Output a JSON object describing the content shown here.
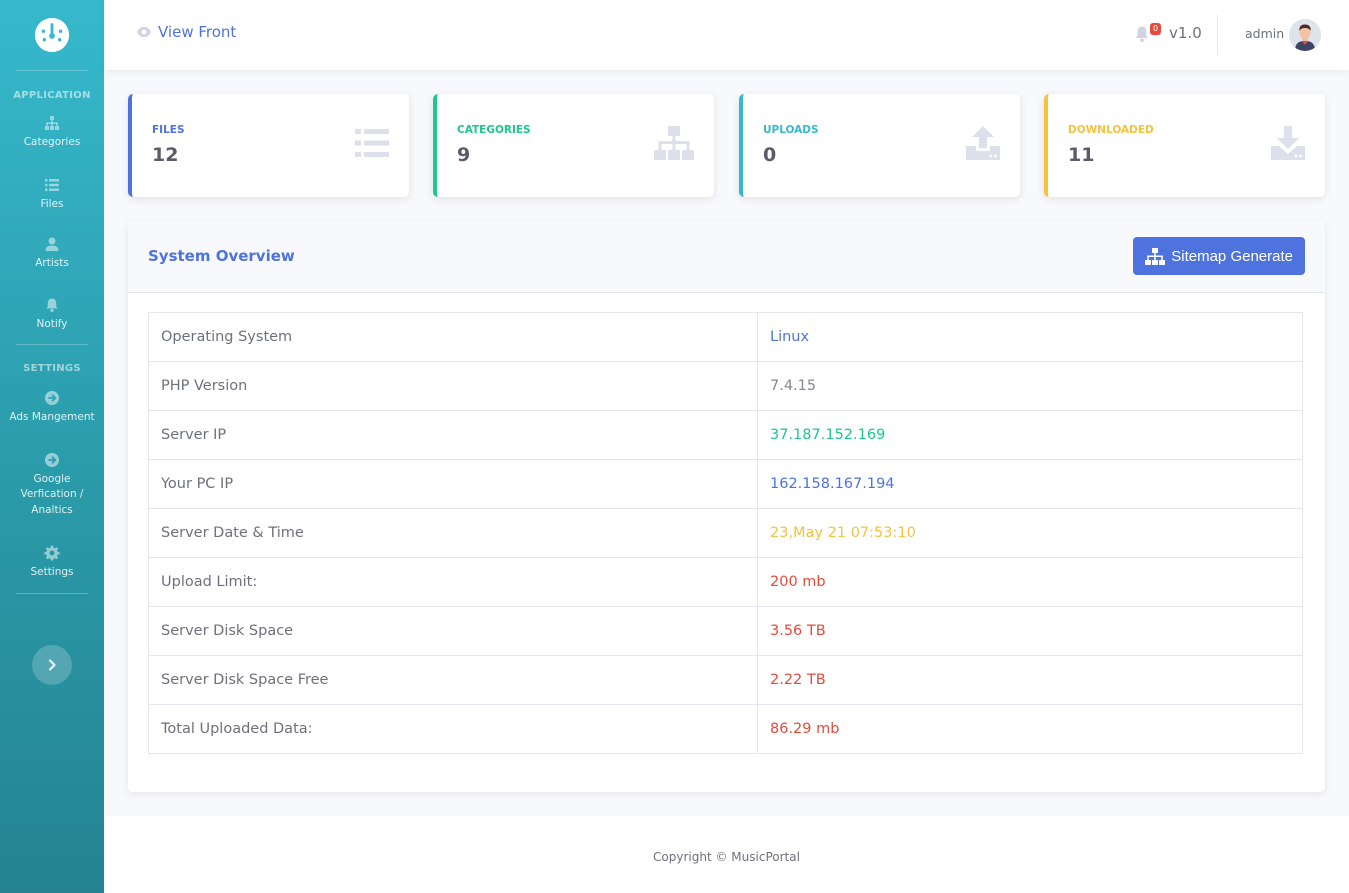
{
  "sidebar": {
    "heading_application": "APPLICATION",
    "heading_settings": "SETTINGS",
    "items": [
      {
        "label": "Categories"
      },
      {
        "label": "Files"
      },
      {
        "label": "Artists"
      },
      {
        "label": "Notify"
      },
      {
        "label": "Ads Mangement"
      },
      {
        "label": "Google Verfication / Analtics"
      },
      {
        "label": "Settings"
      }
    ]
  },
  "topbar": {
    "view_front": "View Front",
    "notification_count": "0",
    "version": "v1.0",
    "username": "admin"
  },
  "cards": [
    {
      "label": "FILES",
      "value": "12",
      "color": "#4e73df",
      "icon": "list-icon"
    },
    {
      "label": "CATEGORIES",
      "value": "9",
      "color": "#1cc88a",
      "icon": "sitemap-icon"
    },
    {
      "label": "UPLOADS",
      "value": "0",
      "color": "#36b9cc",
      "icon": "upload-icon"
    },
    {
      "label": "DOWNLOADED",
      "value": "11",
      "color": "#f6c23e",
      "icon": "download-icon"
    }
  ],
  "overview": {
    "title": "System Overview",
    "sitemap_button": "Sitemap Generate",
    "rows": [
      {
        "key": "Operating System",
        "value": "Linux",
        "color": "#4e73df"
      },
      {
        "key": "PHP Version",
        "value": "7.4.15",
        "color": "#858796"
      },
      {
        "key": "Server IP",
        "value": "37.187.152.169",
        "color": "#1cc88a"
      },
      {
        "key": "Your PC IP",
        "value": "162.158.167.194",
        "color": "#4e73df"
      },
      {
        "key": "Server Date & Time",
        "value": "23,May 21 07:53:10",
        "color": "#f6c23e"
      },
      {
        "key": "Upload Limit:",
        "value": "200 mb",
        "color": "#e74a3b"
      },
      {
        "key": "Server Disk Space",
        "value": "3.56 TB",
        "color": "#e74a3b"
      },
      {
        "key": "Server Disk Space Free",
        "value": "2.22 TB",
        "color": "#e74a3b"
      },
      {
        "key": "Total Uploaded Data:",
        "value": "86.29 mb",
        "color": "#e74a3b"
      }
    ]
  },
  "footer": {
    "copyright": "Copyright © MusicPortal"
  }
}
